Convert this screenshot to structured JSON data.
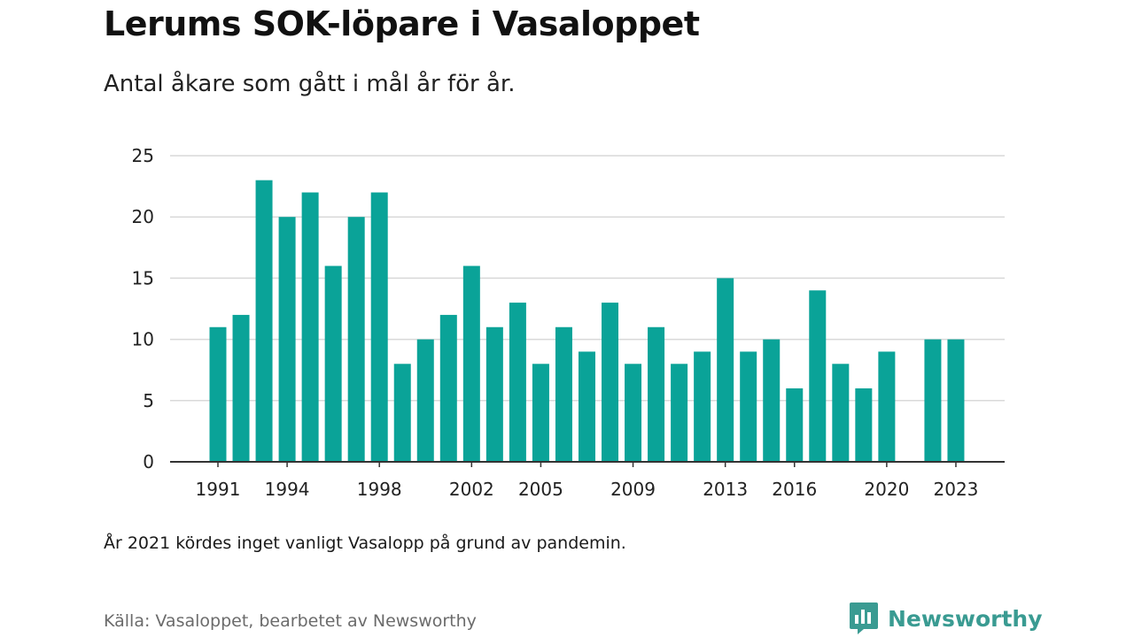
{
  "colors": {
    "bar": "#0aa398",
    "grid": "#d9d9d9",
    "axis": "#333333",
    "brand": "#3a9b92"
  },
  "header": {
    "title": "Lerums SOK-löpare i Vasaloppet",
    "subtitle": "Antal åkare som gått i mål år för år."
  },
  "footer": {
    "note": "År 2021 kördes inget vanligt Vasalopp på grund av pandemin.",
    "source": "Källa: Vasaloppet, bearbetet av Newsworthy",
    "brand": "Newsworthy",
    "brand_icon": "newsworthy-logo-icon"
  },
  "chart_data": {
    "type": "bar",
    "title": "Lerums SOK-löpare i Vasaloppet",
    "subtitle": "Antal åkare som gått i mål år för år.",
    "xlabel": "",
    "ylabel": "",
    "ylim": [
      0,
      25
    ],
    "yticks": [
      0,
      5,
      10,
      15,
      20,
      25
    ],
    "xtick_labels": [
      "1991",
      "1994",
      "1998",
      "2002",
      "2005",
      "2009",
      "2013",
      "2016",
      "2020",
      "2023"
    ],
    "grid": true,
    "legend": "none",
    "categories": [
      "1991",
      "1992",
      "1993",
      "1994",
      "1995",
      "1996",
      "1997",
      "1998",
      "1999",
      "2000",
      "2001",
      "2002",
      "2003",
      "2004",
      "2005",
      "2006",
      "2007",
      "2008",
      "2009",
      "2010",
      "2011",
      "2012",
      "2013",
      "2014",
      "2015",
      "2016",
      "2017",
      "2018",
      "2019",
      "2020",
      "2021",
      "2022",
      "2023"
    ],
    "values": [
      11,
      12,
      23,
      20,
      22,
      16,
      20,
      22,
      8,
      10,
      12,
      16,
      11,
      13,
      8,
      11,
      9,
      13,
      8,
      11,
      8,
      9,
      15,
      9,
      10,
      6,
      14,
      8,
      6,
      9,
      null,
      10,
      10
    ]
  }
}
